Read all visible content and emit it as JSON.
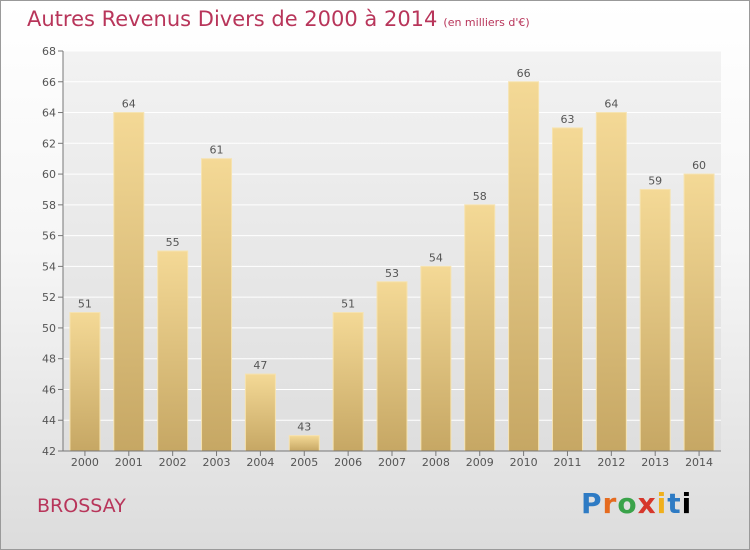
{
  "title": "Autres Revenus Divers de 2000 à 2014",
  "subtitle": "(en milliers d'€)",
  "location": "BROSSAY",
  "logo": {
    "letters": [
      "P",
      "r",
      "o",
      "x",
      "i",
      "t",
      "i"
    ]
  },
  "chart_data": {
    "type": "bar",
    "title": "Autres Revenus Divers de 2000 à 2014",
    "subtitle": "(en milliers d'€)",
    "categories": [
      "2000",
      "2001",
      "2002",
      "2003",
      "2004",
      "2005",
      "2006",
      "2007",
      "2008",
      "2009",
      "2010",
      "2011",
      "2012",
      "2013",
      "2014"
    ],
    "values": [
      51,
      64,
      55,
      61,
      47,
      43,
      51,
      53,
      54,
      58,
      66,
      63,
      64,
      59,
      60
    ],
    "ylim": [
      42,
      68
    ],
    "yticks": [
      "42",
      "44",
      "46",
      "48",
      "50",
      "52",
      "54",
      "56",
      "58",
      "60",
      "62",
      "64",
      "66",
      "68"
    ],
    "grid": true,
    "bar_color": "#f0d28a",
    "bar_color_dark": "#c9aa63",
    "label_color": "#555555",
    "title_color": "#b8355a"
  }
}
